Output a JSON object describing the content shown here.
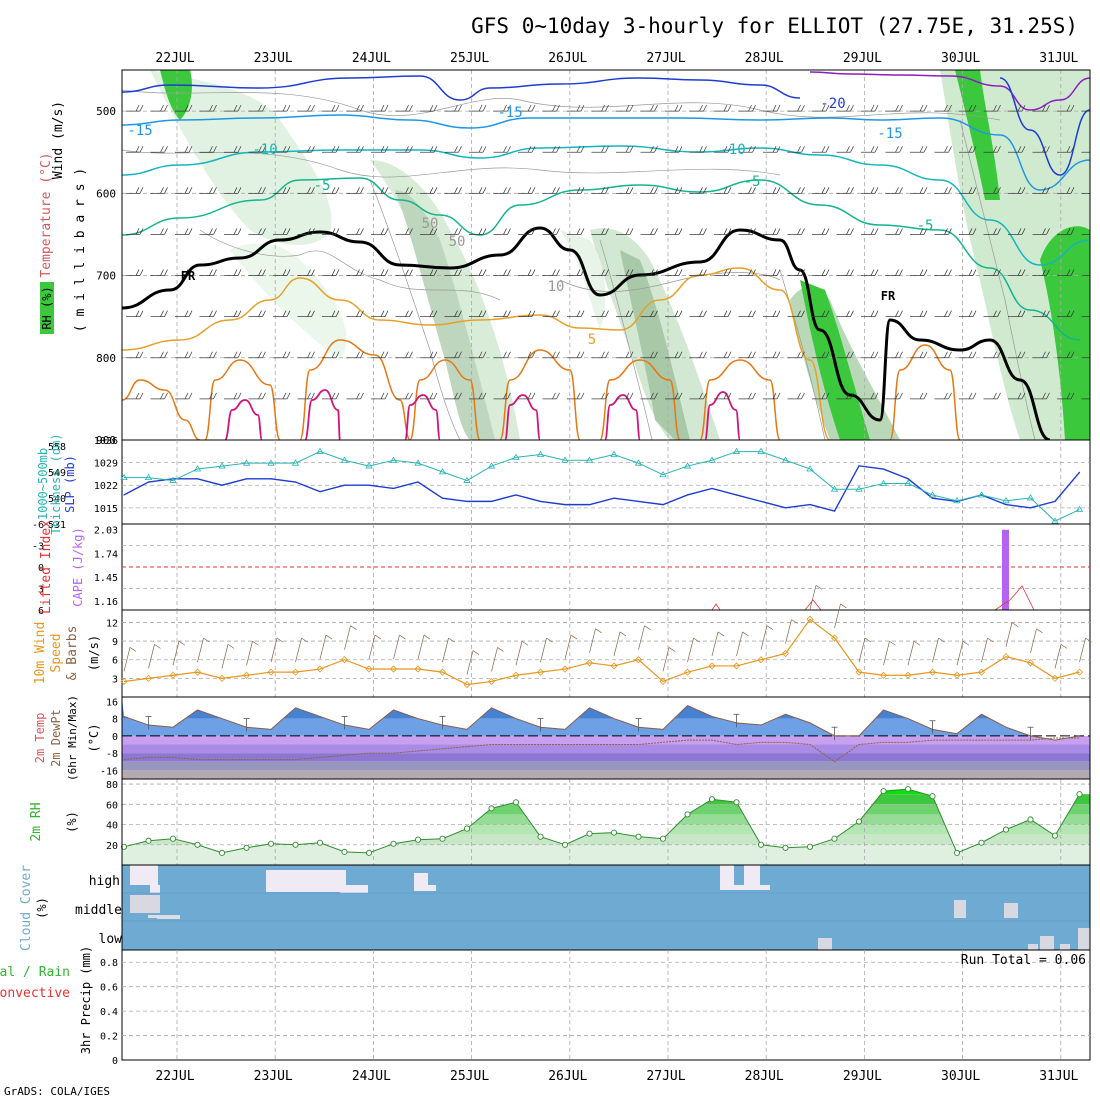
{
  "title": "GFS 0~10day 3-hourly for ELLIOT (27.75E, 31.25S)",
  "footer": "GrADS: COLA/IGES",
  "dates": [
    "22JUL",
    "23JUL",
    "24JUL",
    "25JUL",
    "26JUL",
    "27JUL",
    "28JUL",
    "29JUL",
    "30JUL",
    "31JUL"
  ],
  "colors": {
    "rh": "#3cc83c",
    "rh_light": "#dcf0dc",
    "temp_neg20": "#1e3cd2",
    "temp_neg15": "#1e96e6",
    "temp_neg10": "#14b4be",
    "temp_neg5": "#14b48c",
    "temp_5": "#e6a028",
    "temp_10": "#e67814",
    "temp_15": "#d2147a",
    "freezing": "#000000",
    "slp": "#1e3cd2",
    "thickness": "#28b4b4",
    "cape": "#b464f0",
    "lifted": "#e63232",
    "wind10m": "#e6961e",
    "barb": "#8c6446",
    "temp2m": "#96c8f0",
    "dewpt": "#8c6446",
    "rh2m": "#32c832",
    "cloud": "#6eaad2",
    "precip_conv": "#e63232"
  },
  "panels": {
    "upper": {
      "labels": [
        "Wind (m/s)",
        "Temperature (°C)",
        "( m i l l i b a r s )",
        "RH (%)"
      ],
      "yticks": [
        "500",
        "600",
        "700",
        "800",
        "900"
      ],
      "contour_labels": [
        "-20",
        "-15",
        "-15",
        "-15",
        "-10",
        "-10",
        "-5",
        "-5",
        "-5",
        "5",
        "50",
        "50",
        "10",
        "FR",
        "FR"
      ]
    },
    "slp": {
      "labels": [
        "1000~500mb",
        "Thickness (dm)",
        "SLP (mb)"
      ],
      "left_ticks": [
        "558",
        "549",
        "540",
        "531"
      ],
      "right_ticks": [
        "1036",
        "1029",
        "1022",
        "1015"
      ]
    },
    "cape": {
      "labels": [
        "Lifted Index",
        "CAPE (J/kg)"
      ],
      "left_ticks": [
        "-6",
        "-3",
        "0",
        "3",
        "6"
      ],
      "right_ticks": [
        "2.03",
        "1.74",
        "1.45",
        "1.16"
      ]
    },
    "wind": {
      "labels": [
        "10m Wind",
        "Speed",
        "& Barbs",
        "(m/s)"
      ],
      "yticks": [
        "12",
        "9",
        "6",
        "3"
      ]
    },
    "temp": {
      "labels": [
        "2m Temp",
        "2m DewPt",
        "(6hr Min/Max)",
        "(°C)"
      ],
      "yticks": [
        "16",
        "8",
        "0",
        "-8",
        "-16"
      ]
    },
    "rh": {
      "labels": [
        "2m RH",
        "(%)"
      ],
      "yticks": [
        "80",
        "60",
        "40",
        "20"
      ]
    },
    "cloud": {
      "labels": [
        "Cloud Cover",
        "(%)"
      ],
      "levels": [
        "high",
        "middle",
        "low"
      ]
    },
    "precip": {
      "labels": [
        "Total / Rain",
        "Convective",
        "3hr Precip (mm)"
      ],
      "yticks": [
        "0.8",
        "0.6",
        "0.4",
        "0.2",
        "0"
      ],
      "run_total": "Run Total = 0.06"
    }
  },
  "chart_data": [
    {
      "type": "line",
      "title": "SLP (mb)",
      "x": [
        "21JUL12",
        "21JUL18",
        "22JUL00",
        "22JUL06",
        "22JUL12",
        "22JUL18",
        "23JUL00",
        "23JUL06",
        "23JUL12",
        "23JUL18",
        "24JUL00",
        "24JUL06",
        "24JUL12",
        "24JUL18",
        "25JUL00",
        "25JUL06",
        "25JUL12",
        "25JUL18",
        "26JUL00",
        "26JUL06",
        "26JUL12",
        "26JUL18",
        "27JUL00",
        "27JUL06",
        "27JUL12",
        "27JUL18",
        "28JUL00",
        "28JUL06",
        "28JUL12",
        "28JUL18",
        "29JUL00",
        "29JUL06",
        "29JUL12",
        "29JUL18",
        "30JUL00",
        "30JUL06",
        "30JUL12",
        "30JUL18",
        "31JUL00",
        "31JUL06"
      ],
      "series": [
        {
          "name": "SLP (mb)",
          "values": [
            1019,
            1023,
            1024,
            1024,
            1022,
            1024,
            1024,
            1023,
            1020,
            1022,
            1022,
            1021,
            1023,
            1018,
            1017,
            1017,
            1019,
            1017,
            1016,
            1016,
            1018,
            1017,
            1016,
            1019,
            1021,
            1019,
            1017,
            1015,
            1016,
            1014,
            1028,
            1027,
            1024,
            1018,
            1017,
            1019,
            1016,
            1015,
            1017,
            1026
          ]
        },
        {
          "name": "1000~500mb Thickness (dm)",
          "values": [
            547,
            547,
            546,
            550,
            551,
            552,
            552,
            552,
            556,
            553,
            551,
            553,
            552,
            549,
            546,
            551,
            554,
            555,
            553,
            553,
            555,
            552,
            548,
            551,
            553,
            556,
            556,
            553,
            550,
            543,
            543,
            545,
            545,
            541,
            539,
            541,
            539,
            540,
            532,
            536
          ]
        }
      ],
      "ylim_left": [
        531,
        560
      ],
      "ylim_right": [
        1010,
        1036
      ]
    },
    {
      "type": "bar",
      "title": "CAPE (J/kg)",
      "categories": [
        "30JUL12"
      ],
      "values": [
        2.03
      ],
      "ylim": [
        1.0,
        2.1
      ]
    },
    {
      "type": "line",
      "title": "10m Wind Speed (m/s)",
      "x": [
        "21JUL12",
        "21JUL18",
        "22JUL00",
        "22JUL06",
        "22JUL12",
        "22JUL18",
        "23JUL00",
        "23JUL06",
        "23JUL12",
        "23JUL18",
        "24JUL00",
        "24JUL06",
        "24JUL12",
        "24JUL18",
        "25JUL00",
        "25JUL06",
        "25JUL12",
        "25JUL18",
        "26JUL00",
        "26JUL06",
        "26JUL12",
        "26JUL18",
        "27JUL00",
        "27JUL06",
        "27JUL12",
        "27JUL18",
        "28JUL00",
        "28JUL06",
        "28JUL12",
        "28JUL18",
        "29JUL00",
        "29JUL06",
        "29JUL12",
        "29JUL18",
        "30JUL00",
        "30JUL06",
        "30JUL12",
        "30JUL18",
        "31JUL00",
        "31JUL06"
      ],
      "series": [
        {
          "name": "10m Wind Speed",
          "values": [
            2.5,
            3,
            3.5,
            4,
            3,
            3.5,
            4,
            4,
            4.5,
            6,
            4.5,
            4.5,
            4.5,
            4,
            2,
            2.5,
            3.5,
            4,
            4.5,
            5.5,
            5,
            6,
            2.5,
            4,
            5,
            5,
            6,
            7,
            12.5,
            9.5,
            4,
            3.5,
            3.5,
            4,
            3.5,
            4,
            6.5,
            5.5,
            3,
            4
          ]
        }
      ],
      "ylim": [
        0,
        14
      ]
    },
    {
      "type": "area",
      "title": "2m Temp (°C)",
      "x": [
        "21JUL12",
        "21JUL18",
        "22JUL00",
        "22JUL06",
        "22JUL12",
        "22JUL18",
        "23JUL00",
        "23JUL06",
        "23JUL12",
        "23JUL18",
        "24JUL00",
        "24JUL06",
        "24JUL12",
        "24JUL18",
        "25JUL00",
        "25JUL06",
        "25JUL12",
        "25JUL18",
        "26JUL00",
        "26JUL06",
        "26JUL12",
        "26JUL18",
        "27JUL00",
        "27JUL06",
        "27JUL12",
        "27JUL18",
        "28JUL00",
        "28JUL06",
        "28JUL12",
        "28JUL18",
        "29JUL00",
        "29JUL06",
        "29JUL12",
        "29JUL18",
        "30JUL00",
        "30JUL06",
        "30JUL12",
        "30JUL18",
        "31JUL00",
        "31JUL06"
      ],
      "series": [
        {
          "name": "2m Temp",
          "values": [
            9,
            5,
            4,
            12,
            8,
            4,
            3,
            13,
            9,
            5,
            3,
            12,
            8,
            5,
            3,
            13,
            8,
            4,
            3,
            13,
            8,
            4,
            3,
            14,
            9,
            6,
            5,
            10,
            6,
            0,
            0,
            12,
            8,
            3,
            1,
            10,
            4,
            0,
            -2,
            0
          ]
        },
        {
          "name": "2m DewPt",
          "values": [
            -11,
            -10,
            -10,
            -11,
            -11,
            -11,
            -11,
            -11,
            -10,
            -9,
            -8,
            -8,
            -7,
            -6,
            -5,
            -4,
            -4,
            -4,
            -4,
            -4,
            -4,
            -4,
            -3,
            -2,
            -2,
            -4,
            -3,
            -3,
            -4,
            -12,
            -4,
            -3,
            -3,
            -2,
            -2,
            -2,
            -2,
            -2,
            -1,
            -1
          ]
        }
      ],
      "ylim": [
        -20,
        18
      ]
    },
    {
      "type": "area",
      "title": "2m RH (%)",
      "x": [
        "21JUL12",
        "21JUL18",
        "22JUL00",
        "22JUL06",
        "22JUL12",
        "22JUL18",
        "23JUL00",
        "23JUL06",
        "23JUL12",
        "23JUL18",
        "24JUL00",
        "24JUL06",
        "24JUL12",
        "24JUL18",
        "25JUL00",
        "25JUL06",
        "25JUL12",
        "25JUL18",
        "26JUL00",
        "26JUL06",
        "26JUL12",
        "26JUL18",
        "27JUL00",
        "27JUL06",
        "27JUL12",
        "27JUL18",
        "28JUL00",
        "28JUL06",
        "28JUL12",
        "28JUL18",
        "29JUL00",
        "29JUL06",
        "29JUL12",
        "29JUL18",
        "30JUL00",
        "30JUL06",
        "30JUL12",
        "30JUL18",
        "31JUL00",
        "31JUL06"
      ],
      "series": [
        {
          "name": "2m RH",
          "values": [
            18,
            24,
            26,
            20,
            12,
            17,
            21,
            20,
            22,
            13,
            12,
            21,
            25,
            26,
            36,
            56,
            62,
            28,
            20,
            31,
            32,
            28,
            26,
            50,
            65,
            62,
            20,
            17,
            18,
            26,
            43,
            73,
            75,
            68,
            12,
            22,
            35,
            45,
            29,
            70
          ]
        }
      ],
      "ylim": [
        0,
        85
      ]
    },
    {
      "type": "bar",
      "title": "3hr Precip (mm)",
      "categories": [
        "Run Total"
      ],
      "values": [
        0.06
      ],
      "ylim": [
        0,
        0.9
      ]
    }
  ]
}
